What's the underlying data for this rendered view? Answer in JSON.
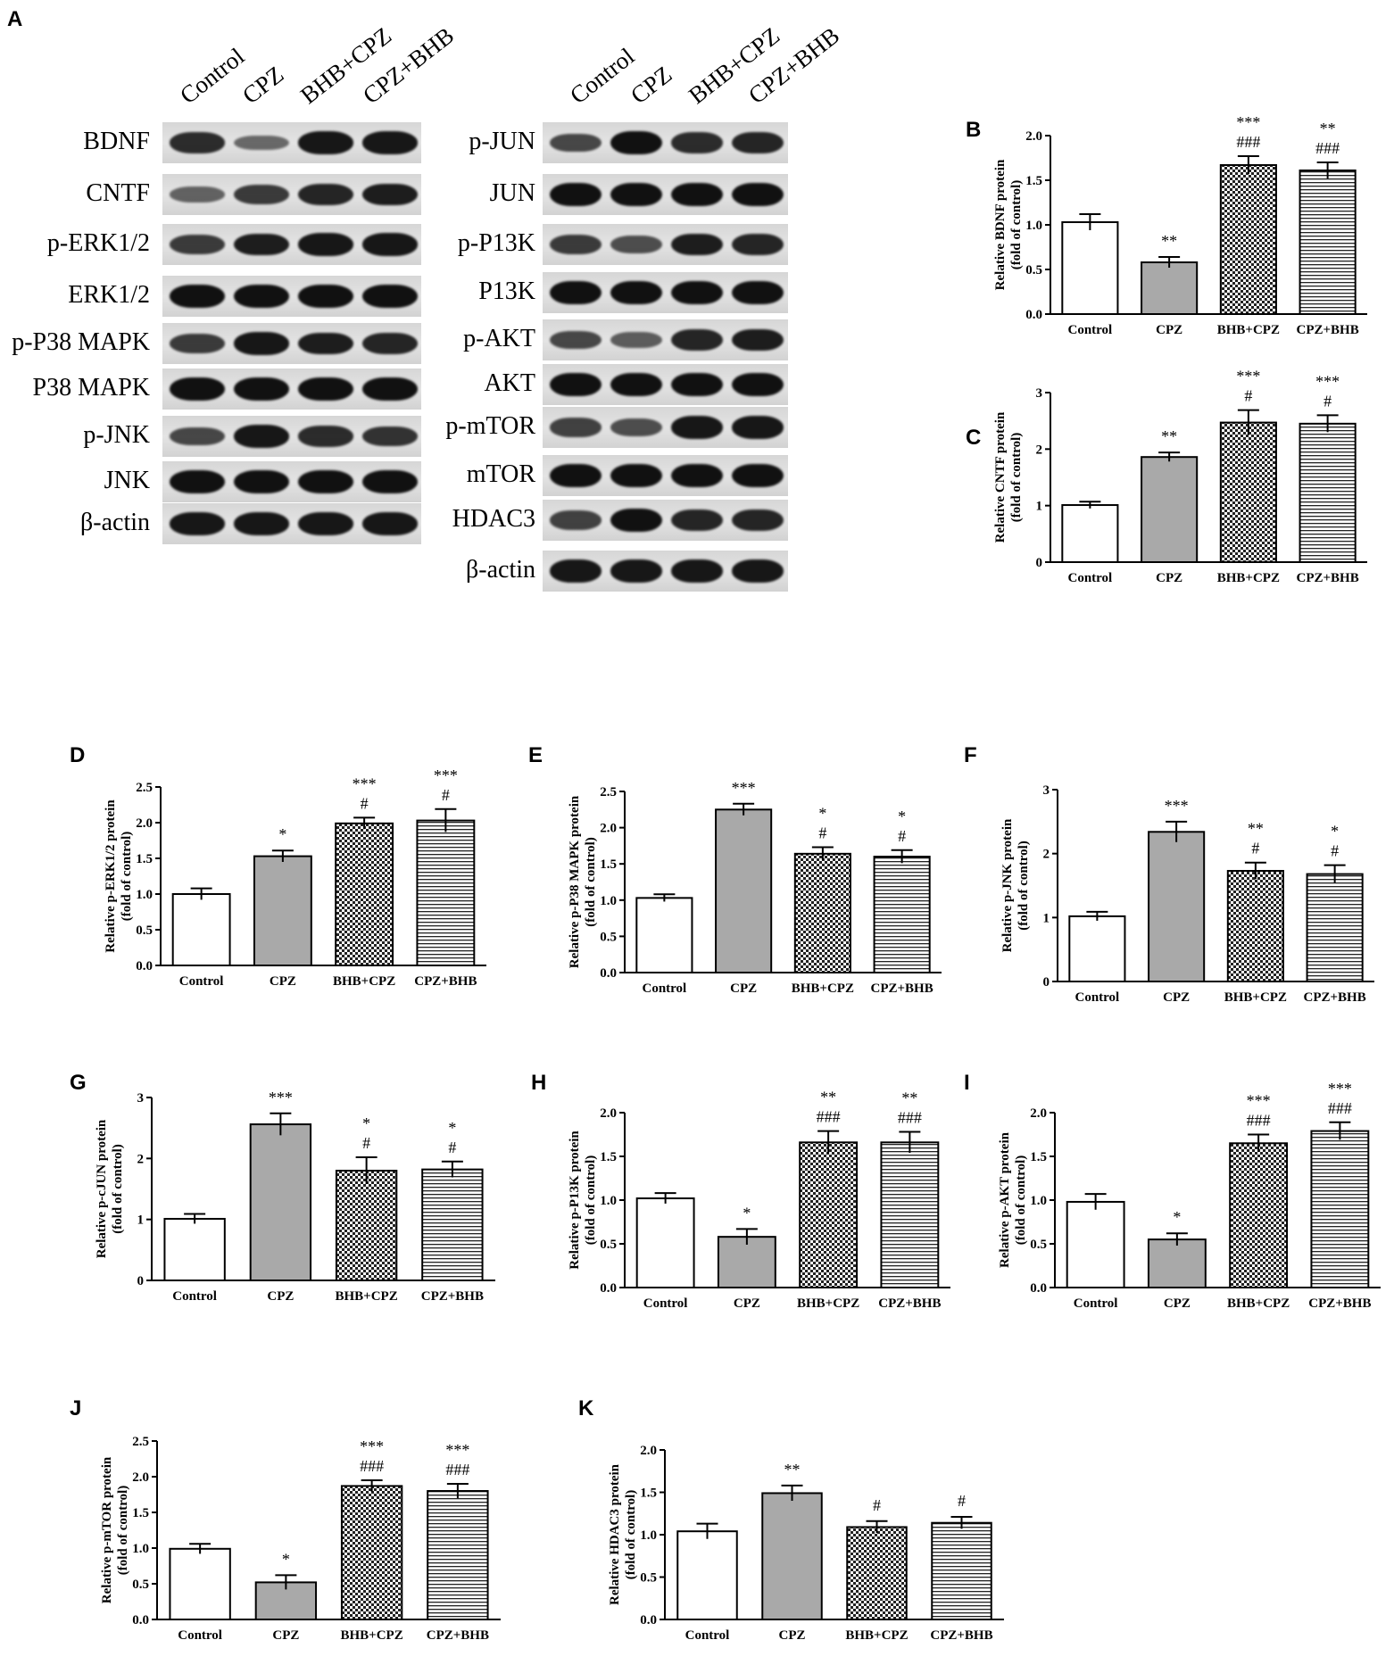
{
  "panels": {
    "a": "A",
    "b": "B",
    "c": "C",
    "d": "D",
    "e": "E",
    "f": "F",
    "g": "G",
    "h": "H",
    "i": "I",
    "j": "J",
    "k": "K"
  },
  "blot_columns": [
    "Control",
    "CPZ",
    "BHB+CPZ",
    "CPZ+BHB"
  ],
  "blot_left": {
    "labels": [
      "BDNF",
      "CNTF",
      "p-ERK1/2",
      "ERK1/2",
      "p-P38 MAPK",
      "P38 MAPK",
      "p-JNK",
      "JNK",
      "β-actin"
    ]
  },
  "blot_right": {
    "labels": [
      "p-JUN",
      "JUN",
      "p-P13K",
      "P13K",
      "p-AKT",
      "AKT",
      "p-mTOR",
      "mTOR",
      "HDAC3",
      "β-actin"
    ]
  },
  "colors": {
    "control": "#ffffff",
    "cpz": "#a9a9a9",
    "axis": "#000000"
  },
  "fill_patterns": [
    "white",
    "gray",
    "checker",
    "horizontal-stripes"
  ],
  "chart_data": [
    {
      "id": "B",
      "type": "bar",
      "categories": [
        "Control",
        "CPZ",
        "BHB+CPZ",
        "CPZ+BHB"
      ],
      "values": [
        1.03,
        0.58,
        1.67,
        1.61
      ],
      "errors": [
        0.09,
        0.06,
        0.1,
        0.09
      ],
      "ylabel": "Relative BDNF protein (fold of control)",
      "ylim": [
        0,
        2.0
      ],
      "yticks": [
        "0.0",
        "0.5",
        "1.0",
        "1.5",
        "2.0"
      ],
      "annotations": [
        [
          "",
          ""
        ],
        [
          "**",
          ""
        ],
        [
          "***",
          "###"
        ],
        [
          "**",
          "###"
        ]
      ]
    },
    {
      "id": "C",
      "type": "bar",
      "categories": [
        "Control",
        "CPZ",
        "BHB+CPZ",
        "CPZ+BHB"
      ],
      "values": [
        1.01,
        1.86,
        2.47,
        2.45
      ],
      "errors": [
        0.06,
        0.08,
        0.22,
        0.15
      ],
      "ylabel": "Relative CNTF protein (fold of control)",
      "ylim": [
        0,
        3
      ],
      "yticks": [
        "0",
        "1",
        "2",
        "3"
      ],
      "annotations": [
        [
          "",
          ""
        ],
        [
          "**",
          ""
        ],
        [
          "***",
          "#"
        ],
        [
          "***",
          "#"
        ]
      ]
    },
    {
      "id": "D",
      "type": "bar",
      "categories": [
        "Control",
        "CPZ",
        "BHB+CPZ",
        "CPZ+BHB"
      ],
      "values": [
        1.0,
        1.53,
        1.99,
        2.03
      ],
      "errors": [
        0.08,
        0.08,
        0.08,
        0.16
      ],
      "ylabel": "Relative p-ERK1/2 protein (fold of control)",
      "ylim": [
        0,
        2.5
      ],
      "yticks": [
        "0.0",
        "0.5",
        "1.0",
        "1.5",
        "2.0",
        "2.5"
      ],
      "annotations": [
        [
          "",
          ""
        ],
        [
          "*",
          ""
        ],
        [
          "***",
          "#"
        ],
        [
          "***",
          "#"
        ]
      ]
    },
    {
      "id": "E",
      "type": "bar",
      "categories": [
        "Control",
        "CPZ",
        "BHB+CPZ",
        "CPZ+BHB"
      ],
      "values": [
        1.03,
        2.25,
        1.64,
        1.6
      ],
      "errors": [
        0.05,
        0.08,
        0.09,
        0.09
      ],
      "ylabel": "Relative p-P38 MAPK protein (fold of control)",
      "ylim": [
        0,
        2.5
      ],
      "yticks": [
        "0.0",
        "0.5",
        "1.0",
        "1.5",
        "2.0",
        "2.5"
      ],
      "annotations": [
        [
          "",
          ""
        ],
        [
          "***",
          ""
        ],
        [
          "*",
          "#"
        ],
        [
          "*",
          "#"
        ]
      ]
    },
    {
      "id": "F",
      "type": "bar",
      "categories": [
        "Control",
        "CPZ",
        "BHB+CPZ",
        "CPZ+BHB"
      ],
      "values": [
        1.02,
        2.34,
        1.73,
        1.68
      ],
      "errors": [
        0.07,
        0.16,
        0.13,
        0.14
      ],
      "ylabel": "Relative p-JNK protein (fold of control)",
      "ylim": [
        0,
        3
      ],
      "yticks": [
        "0",
        "1",
        "2",
        "3"
      ],
      "annotations": [
        [
          "",
          ""
        ],
        [
          "***",
          ""
        ],
        [
          "**",
          "#"
        ],
        [
          "*",
          "#"
        ]
      ]
    },
    {
      "id": "G",
      "type": "bar",
      "categories": [
        "Control",
        "CPZ",
        "BHB+CPZ",
        "CPZ+BHB"
      ],
      "values": [
        1.01,
        2.56,
        1.8,
        1.82
      ],
      "errors": [
        0.08,
        0.18,
        0.22,
        0.13
      ],
      "ylabel": "Relative p-cJUN protein (fold of control)",
      "ylim": [
        0,
        3
      ],
      "yticks": [
        "0",
        "1",
        "2",
        "3"
      ],
      "annotations": [
        [
          "",
          ""
        ],
        [
          "***",
          ""
        ],
        [
          "*",
          "#"
        ],
        [
          "*",
          "#"
        ]
      ]
    },
    {
      "id": "H",
      "type": "bar",
      "categories": [
        "Control",
        "CPZ",
        "BHB+CPZ",
        "CPZ+BHB"
      ],
      "values": [
        1.02,
        0.58,
        1.66,
        1.66
      ],
      "errors": [
        0.06,
        0.09,
        0.13,
        0.12
      ],
      "ylabel": "Relative p-P13K protein (fold of control)",
      "ylim": [
        0,
        2.0
      ],
      "yticks": [
        "0.0",
        "0.5",
        "1.0",
        "1.5",
        "2.0"
      ],
      "annotations": [
        [
          "",
          ""
        ],
        [
          "*",
          ""
        ],
        [
          "**",
          "###"
        ],
        [
          "**",
          "###"
        ]
      ]
    },
    {
      "id": "I",
      "type": "bar",
      "categories": [
        "Control",
        "CPZ",
        "BHB+CPZ",
        "CPZ+BHB"
      ],
      "values": [
        0.98,
        0.55,
        1.65,
        1.79
      ],
      "errors": [
        0.09,
        0.07,
        0.1,
        0.1
      ],
      "ylabel": "Relative p-AKT protein (fold of control)",
      "ylim": [
        0,
        2.0
      ],
      "yticks": [
        "0.0",
        "0.5",
        "1.0",
        "1.5",
        "2.0"
      ],
      "annotations": [
        [
          "",
          ""
        ],
        [
          "*",
          ""
        ],
        [
          "***",
          "###"
        ],
        [
          "***",
          "###"
        ]
      ]
    },
    {
      "id": "J",
      "type": "bar",
      "categories": [
        "Control",
        "CPZ",
        "BHB+CPZ",
        "CPZ+BHB"
      ],
      "values": [
        0.99,
        0.52,
        1.87,
        1.8
      ],
      "errors": [
        0.07,
        0.1,
        0.08,
        0.1
      ],
      "ylabel": "Relative p-mTOR protein (fold of control)",
      "ylim": [
        0,
        2.5
      ],
      "yticks": [
        "0.0",
        "0.5",
        "1.0",
        "1.5",
        "2.0",
        "2.5"
      ],
      "annotations": [
        [
          "",
          ""
        ],
        [
          "*",
          ""
        ],
        [
          "***",
          "###"
        ],
        [
          "***",
          "###"
        ]
      ]
    },
    {
      "id": "K",
      "type": "bar",
      "categories": [
        "Control",
        "CPZ",
        "BHB+CPZ",
        "CPZ+BHB"
      ],
      "values": [
        1.04,
        1.49,
        1.09,
        1.14
      ],
      "errors": [
        0.09,
        0.09,
        0.07,
        0.07
      ],
      "ylabel": "Relative HDAC3 protein (fold of control)",
      "ylim": [
        0,
        2.0
      ],
      "yticks": [
        "0.0",
        "0.5",
        "1.0",
        "1.5",
        "2.0"
      ],
      "annotations": [
        [
          "",
          ""
        ],
        [
          "**",
          ""
        ],
        [
          "#",
          ""
        ],
        [
          "#",
          ""
        ]
      ]
    }
  ]
}
